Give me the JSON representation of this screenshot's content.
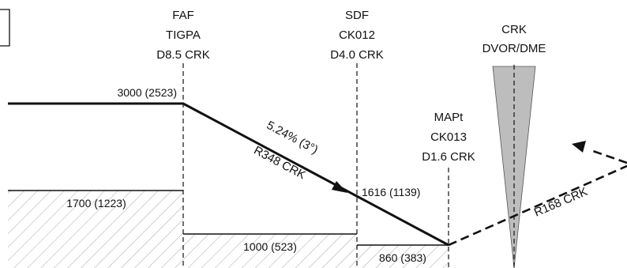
{
  "fixes": {
    "faf": {
      "role": "FAF",
      "name": "TIGPA",
      "dist": "D8.5 CRK"
    },
    "sdf": {
      "role": "SDF",
      "name": "CK012",
      "dist": "D4.0 CRK"
    },
    "mapt": {
      "role": "MAPt",
      "name": "CK013",
      "dist": "D1.6 CRK"
    },
    "navaid": {
      "name": "CRK",
      "type": "DVOR/DME"
    }
  },
  "altitudes": {
    "initial": "3000 (2523)",
    "sdf": "1616 (1139)",
    "msa_left": "1700 (1223)",
    "msa_mid": "1000 (523)",
    "msa_right": "860 (383)"
  },
  "approach": {
    "gradient": "5.24% (3°)",
    "course": "R348 CRK"
  },
  "missed_approach": {
    "course": "R168 CRK"
  },
  "colors": {
    "line": "#111111",
    "hatch": "#9a9a9a",
    "cone_fill": "#b8b8b8"
  }
}
